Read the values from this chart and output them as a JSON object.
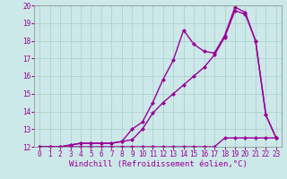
{
  "background_color": "#cce8e8",
  "grid_color": "#aacccc",
  "line_color": "#990099",
  "xlim": [
    -0.5,
    23.5
  ],
  "ylim": [
    12,
    20
  ],
  "xticks": [
    0,
    1,
    2,
    3,
    4,
    5,
    6,
    7,
    8,
    9,
    10,
    11,
    12,
    13,
    14,
    15,
    16,
    17,
    18,
    19,
    20,
    21,
    22,
    23
  ],
  "yticks": [
    12,
    13,
    14,
    15,
    16,
    17,
    18,
    19,
    20
  ],
  "xlabel": "Windchill (Refroidissement éolien,°C)",
  "line1_x": [
    0,
    1,
    2,
    3,
    4,
    5,
    6,
    7,
    8,
    9,
    10,
    11,
    12,
    13,
    14,
    15,
    16,
    17,
    18,
    19,
    20,
    21,
    22,
    23
  ],
  "line1_y": [
    12,
    12,
    12,
    12,
    12,
    12,
    12,
    12,
    12,
    12,
    12,
    12,
    12,
    12,
    12,
    12,
    12,
    12,
    12.5,
    12.5,
    12.5,
    12.5,
    12.5,
    12.5
  ],
  "line2_x": [
    0,
    1,
    2,
    3,
    4,
    5,
    6,
    7,
    8,
    9,
    10,
    11,
    12,
    13,
    14,
    15,
    16,
    17,
    18,
    19,
    20,
    21,
    22,
    23
  ],
  "line2_y": [
    12,
    12,
    12,
    12.1,
    12.2,
    12.2,
    12.2,
    12.2,
    12.3,
    12.4,
    13.0,
    13.9,
    14.5,
    15.0,
    15.5,
    16.0,
    16.5,
    17.2,
    18.2,
    19.7,
    19.5,
    18.0,
    13.8,
    12.5
  ],
  "line3_x": [
    0,
    1,
    2,
    3,
    4,
    5,
    6,
    7,
    8,
    9,
    10,
    11,
    12,
    13,
    14,
    15,
    16,
    17,
    18,
    19,
    20,
    21,
    22,
    23
  ],
  "line3_y": [
    12,
    12,
    12,
    12.1,
    12.2,
    12.2,
    12.2,
    12.2,
    12.3,
    13.0,
    13.4,
    14.5,
    15.8,
    16.9,
    18.6,
    17.8,
    17.4,
    17.3,
    18.3,
    19.9,
    19.6,
    18.0,
    13.8,
    12.5
  ],
  "marker": "D",
  "markersize": 2.5,
  "linewidth": 1.0,
  "tick_labelsize": 5.5,
  "xlabel_fontsize": 6.5
}
